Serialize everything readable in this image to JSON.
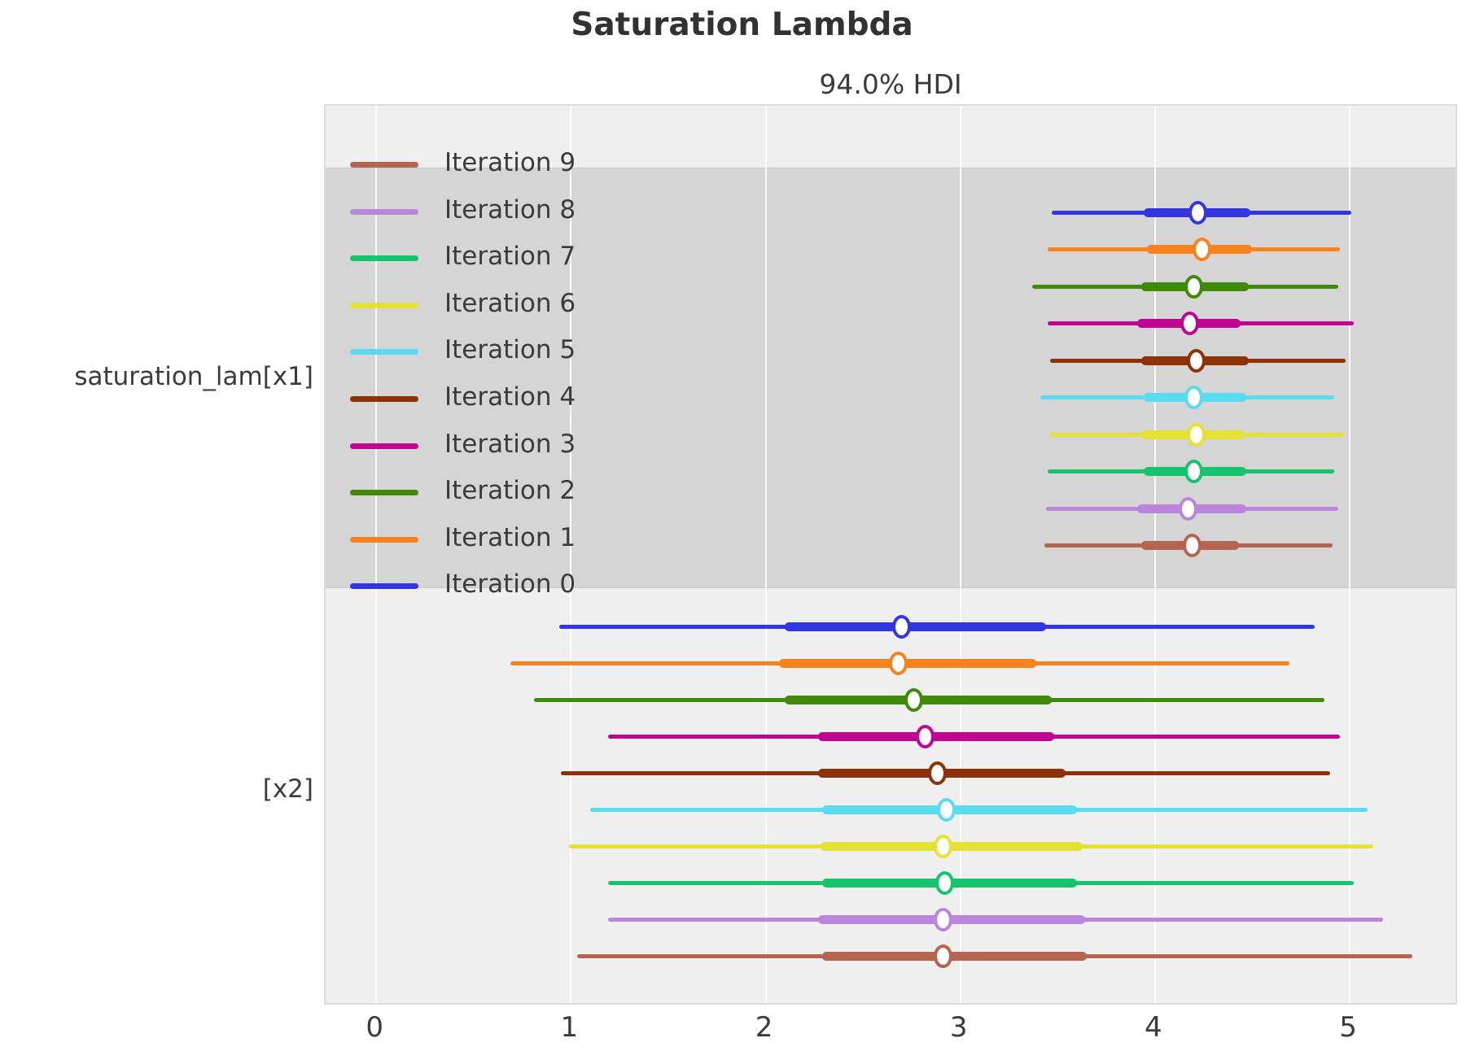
{
  "title": "Saturation Lambda",
  "subtitle": "94.0% HDI",
  "chart_data": {
    "type": "forest",
    "title": "Saturation Lambda",
    "subtitle": "94.0% HDI",
    "hdi_probability": "94.0%",
    "xlim": [
      -0.26,
      5.56
    ],
    "x_ticks": [
      0,
      1,
      2,
      3,
      4,
      5
    ],
    "grid": "on",
    "legend_position": "upper-left-inside",
    "legend": [
      {
        "label": "Iteration 9",
        "color": "#b5654f"
      },
      {
        "label": "Iteration 8",
        "color": "#bb85de"
      },
      {
        "label": "Iteration 7",
        "color": "#17c46e"
      },
      {
        "label": "Iteration 6",
        "color": "#e6e234"
      },
      {
        "label": "Iteration 5",
        "color": "#59dcf2"
      },
      {
        "label": "Iteration 4",
        "color": "#8e3104"
      },
      {
        "label": "Iteration 3",
        "color": "#c00590"
      },
      {
        "label": "Iteration 2",
        "color": "#3f8a06"
      },
      {
        "label": "Iteration 1",
        "color": "#f8821e"
      },
      {
        "label": "Iteration 0",
        "color": "#3336e0"
      }
    ],
    "groups": [
      {
        "label": "saturation_lam[x1]",
        "shaded": true,
        "rows": [
          {
            "iteration": "Iteration 0",
            "color": "#3336e0",
            "hdi": [
              3.47,
              5.01
            ],
            "quartile": [
              3.94,
              4.49
            ],
            "median": 4.22
          },
          {
            "iteration": "Iteration 1",
            "color": "#f8821e",
            "hdi": [
              3.45,
              4.95
            ],
            "quartile": [
              3.96,
              4.5
            ],
            "median": 4.24
          },
          {
            "iteration": "Iteration 2",
            "color": "#3f8a06",
            "hdi": [
              3.37,
              4.94
            ],
            "quartile": [
              3.93,
              4.48
            ],
            "median": 4.2
          },
          {
            "iteration": "Iteration 3",
            "color": "#c00590",
            "hdi": [
              3.45,
              5.02
            ],
            "quartile": [
              3.91,
              4.44
            ],
            "median": 4.18
          },
          {
            "iteration": "Iteration 4",
            "color": "#8e3104",
            "hdi": [
              3.46,
              4.98
            ],
            "quartile": [
              3.93,
              4.48
            ],
            "median": 4.21
          },
          {
            "iteration": "Iteration 5",
            "color": "#59dcf2",
            "hdi": [
              3.41,
              4.92
            ],
            "quartile": [
              3.94,
              4.47
            ],
            "median": 4.2
          },
          {
            "iteration": "Iteration 6",
            "color": "#e6e234",
            "hdi": [
              3.46,
              4.97
            ],
            "quartile": [
              3.93,
              4.46
            ],
            "median": 4.21
          },
          {
            "iteration": "Iteration 7",
            "color": "#17c46e",
            "hdi": [
              3.45,
              4.92
            ],
            "quartile": [
              3.94,
              4.47
            ],
            "median": 4.2
          },
          {
            "iteration": "Iteration 8",
            "color": "#bb85de",
            "hdi": [
              3.44,
              4.94
            ],
            "quartile": [
              3.91,
              4.47
            ],
            "median": 4.17
          },
          {
            "iteration": "Iteration 9",
            "color": "#b5654f",
            "hdi": [
              3.43,
              4.91
            ],
            "quartile": [
              3.93,
              4.43
            ],
            "median": 4.19
          }
        ]
      },
      {
        "label": "[x2]",
        "shaded": false,
        "rows": [
          {
            "iteration": "Iteration 0",
            "color": "#3336e0",
            "hdi": [
              0.94,
              4.82
            ],
            "quartile": [
              2.1,
              3.44
            ],
            "median": 2.7
          },
          {
            "iteration": "Iteration 1",
            "color": "#f8821e",
            "hdi": [
              0.69,
              4.69
            ],
            "quartile": [
              2.07,
              3.39
            ],
            "median": 2.68
          },
          {
            "iteration": "Iteration 2",
            "color": "#3f8a06",
            "hdi": [
              0.81,
              4.87
            ],
            "quartile": [
              2.1,
              3.47
            ],
            "median": 2.76
          },
          {
            "iteration": "Iteration 3",
            "color": "#c00590",
            "hdi": [
              1.19,
              4.95
            ],
            "quartile": [
              2.27,
              3.48
            ],
            "median": 2.82
          },
          {
            "iteration": "Iteration 4",
            "color": "#8e3104",
            "hdi": [
              0.95,
              4.9
            ],
            "quartile": [
              2.27,
              3.54
            ],
            "median": 2.88
          },
          {
            "iteration": "Iteration 5",
            "color": "#59dcf2",
            "hdi": [
              1.1,
              5.09
            ],
            "quartile": [
              2.29,
              3.6
            ],
            "median": 2.93
          },
          {
            "iteration": "Iteration 6",
            "color": "#e6e234",
            "hdi": [
              0.99,
              5.12
            ],
            "quartile": [
              2.28,
              3.63
            ],
            "median": 2.91
          },
          {
            "iteration": "Iteration 7",
            "color": "#17c46e",
            "hdi": [
              1.19,
              5.02
            ],
            "quartile": [
              2.29,
              3.6
            ],
            "median": 2.92
          },
          {
            "iteration": "Iteration 8",
            "color": "#bb85de",
            "hdi": [
              1.19,
              5.17
            ],
            "quartile": [
              2.27,
              3.64
            ],
            "median": 2.91
          },
          {
            "iteration": "Iteration 9",
            "color": "#b5654f",
            "hdi": [
              1.03,
              5.32
            ],
            "quartile": [
              2.29,
              3.65
            ],
            "median": 2.91
          }
        ]
      }
    ],
    "colors": {
      "plot_background": "#efefef",
      "shaded_band": "#d5d5d5",
      "gridline": "#ffffff",
      "text": "#3b3b3b"
    }
  }
}
